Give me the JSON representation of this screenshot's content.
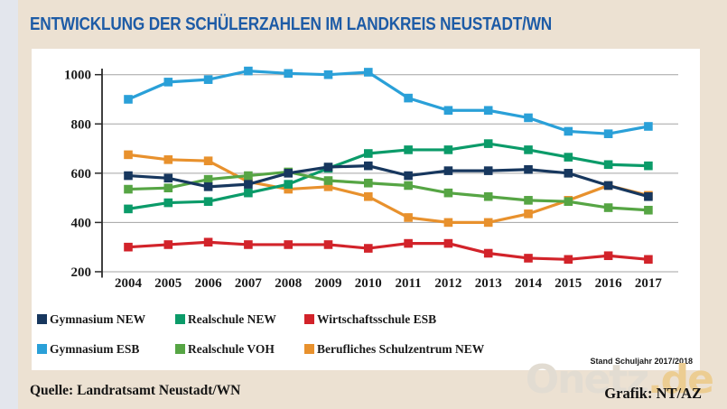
{
  "page": {
    "title": "ENTWICKLUNG DER SCHÜLERZAHLEN IM LANDKREIS NEUSTADT/WN",
    "source": "Quelle: Landratsamt Neustadt/WN",
    "credit": "Grafik: NT/AZ",
    "status_note": "Stand Schuljahr 2017/2018",
    "watermark_main": "Onetz",
    "watermark_suffix": ".de"
  },
  "colors": {
    "background": "#ece1d2",
    "left_strip": "#e3e6ed",
    "panel": "#ffffff",
    "title": "#1d5ba6",
    "grid": "#a3a3a3",
    "axis": "#2b2b2b",
    "label": "#1b1b1b",
    "watermark_main": "#e2dcd2",
    "watermark_suffix": "#eccd92"
  },
  "chart_data": {
    "type": "line",
    "title": "Entwicklung der Schülerzahlen im Landkreis Neustadt/WN",
    "xlabel": "",
    "ylabel": "",
    "categories": [
      "2004",
      "2005",
      "2006",
      "2007",
      "2008",
      "2009",
      "2010",
      "2011",
      "2012",
      "2013",
      "2014",
      "2015",
      "2016",
      "2017"
    ],
    "ylim": [
      200,
      1000
    ],
    "yticks": [
      200,
      400,
      600,
      800,
      1000
    ],
    "grid": true,
    "marker": "square",
    "legend_position": "bottom",
    "series": [
      {
        "name": "Berufliches Schulzentrum NEW",
        "color": "#e8912d",
        "values": [
          675,
          655,
          650,
          565,
          535,
          545,
          505,
          420,
          400,
          400,
          435,
          490,
          550,
          510
        ]
      },
      {
        "name": "Realschule NEW",
        "color": "#0b9b69",
        "values": [
          455,
          480,
          485,
          520,
          555,
          620,
          680,
          695,
          695,
          720,
          695,
          665,
          635,
          630
        ]
      },
      {
        "name": "Realschule VOH",
        "color": "#56a544",
        "values": [
          535,
          540,
          575,
          590,
          605,
          570,
          560,
          550,
          520,
          505,
          490,
          485,
          460,
          450
        ]
      },
      {
        "name": "Gymnasium ESB",
        "color": "#2aa0d8",
        "values": [
          900,
          970,
          980,
          1015,
          1005,
          1000,
          1010,
          905,
          855,
          855,
          825,
          770,
          760,
          790
        ]
      },
      {
        "name": "Wirtschaftsschule ESB",
        "color": "#d2232a",
        "values": [
          300,
          310,
          320,
          310,
          310,
          310,
          295,
          315,
          315,
          275,
          255,
          250,
          265,
          250
        ]
      },
      {
        "name": "Gymnasium NEW",
        "color": "#17375e",
        "values": [
          590,
          580,
          545,
          555,
          600,
          625,
          630,
          590,
          610,
          610,
          615,
          600,
          550,
          505
        ]
      }
    ],
    "legend_rows": [
      [
        "Gymnasium NEW",
        "Realschule NEW",
        "Wirtschaftsschule ESB"
      ],
      [
        "Gymnasium ESB",
        "Realschule VOH",
        "Berufliches Schulzentrum NEW"
      ]
    ]
  }
}
